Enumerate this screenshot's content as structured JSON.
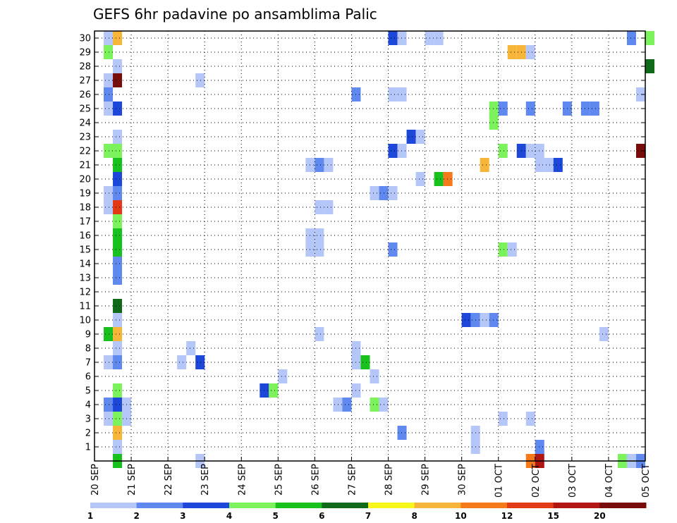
{
  "chart_data": {
    "type": "heatmap",
    "title": "GEFS 6hr padavine po ansamblima Palic",
    "xlabel": "",
    "ylabel": "",
    "x_range": [
      "2025-09-20 00:00",
      "2025-10-05 00:00"
    ],
    "y_range": [
      0,
      30
    ],
    "time_step_hours": 6,
    "grid": "dotted",
    "x_tick_labels": [
      "20 SEP",
      "21 SEP",
      "22 SEP",
      "23 SEP",
      "24 SEP",
      "25 SEP",
      "26 SEP",
      "27 SEP",
      "28 SEP",
      "29 SEP",
      "30 SEP",
      "01 OCT",
      "02 OCT",
      "03 OCT",
      "04 OCT",
      "05 OCT"
    ],
    "y_tick_labels": [
      "1",
      "2",
      "3",
      "4",
      "5",
      "6",
      "7",
      "8",
      "9",
      "10",
      "11",
      "12",
      "13",
      "14",
      "15",
      "16",
      "17",
      "18",
      "19",
      "20",
      "21",
      "22",
      "23",
      "24",
      "25",
      "26",
      "27",
      "28",
      "29",
      "30"
    ],
    "colorbar": {
      "placement": "bottom",
      "labels": [
        "1",
        "2",
        "3",
        "4",
        "5",
        "6",
        "7",
        "8",
        "10",
        "12",
        "15",
        "20"
      ],
      "colors": [
        "#b4c7f8",
        "#5f89ee",
        "#1d47d8",
        "#7cf25c",
        "#19c11e",
        "#106a1a",
        "#f7f71c",
        "#f7b63a",
        "#f6791a",
        "#e33a15",
        "#b11613",
        "#780c0b"
      ]
    },
    "cells": [
      [
        0.25,
        30,
        1
      ],
      [
        0.5,
        30,
        8
      ],
      [
        0.25,
        29,
        4
      ],
      [
        0.5,
        28,
        1
      ],
      [
        0.25,
        27,
        1
      ],
      [
        0.5,
        27,
        20
      ],
      [
        0.25,
        26,
        2
      ],
      [
        0.25,
        25,
        1
      ],
      [
        0.5,
        25,
        3
      ],
      [
        0.5,
        23,
        1
      ],
      [
        0.25,
        22,
        4
      ],
      [
        0.5,
        22,
        4
      ],
      [
        0.5,
        21,
        5
      ],
      [
        0.5,
        20,
        3
      ],
      [
        0.25,
        19,
        1
      ],
      [
        0.5,
        19,
        2
      ],
      [
        0.25,
        18,
        1
      ],
      [
        0.5,
        18,
        12
      ],
      [
        0.5,
        17,
        4
      ],
      [
        0.5,
        16,
        5
      ],
      [
        0.5,
        15,
        5
      ],
      [
        0.5,
        14,
        2
      ],
      [
        0.5,
        13,
        2
      ],
      [
        0.5,
        11,
        6
      ],
      [
        0.5,
        10,
        1
      ],
      [
        0.25,
        9,
        5
      ],
      [
        0.5,
        9,
        8
      ],
      [
        0.5,
        8,
        1
      ],
      [
        0.25,
        7,
        1
      ],
      [
        0.5,
        7,
        2
      ],
      [
        0.5,
        5,
        4
      ],
      [
        0.25,
        4,
        2
      ],
      [
        0.5,
        4,
        3
      ],
      [
        0.75,
        4,
        1
      ],
      [
        0.25,
        3,
        1
      ],
      [
        0.5,
        3,
        4
      ],
      [
        0.75,
        3,
        1
      ],
      [
        0.5,
        2,
        8
      ],
      [
        0.5,
        1,
        1
      ],
      [
        0.5,
        0,
        5
      ],
      [
        2.25,
        7,
        1
      ],
      [
        2.5,
        8,
        1
      ],
      [
        2.75,
        7,
        3
      ],
      [
        2.75,
        27,
        1
      ],
      [
        2.75,
        0,
        1
      ],
      [
        4.5,
        5,
        3
      ],
      [
        4.75,
        5,
        4
      ],
      [
        5.0,
        6,
        1
      ],
      [
        5.75,
        21,
        1
      ],
      [
        6.0,
        21,
        2
      ],
      [
        6.25,
        21,
        1
      ],
      [
        5.75,
        16,
        1
      ],
      [
        6.0,
        16,
        1
      ],
      [
        5.75,
        15,
        1
      ],
      [
        6.0,
        15,
        1
      ],
      [
        6.0,
        18,
        1
      ],
      [
        6.25,
        18,
        1
      ],
      [
        6.0,
        9,
        1
      ],
      [
        6.5,
        4,
        1
      ],
      [
        6.75,
        4,
        2
      ],
      [
        7.0,
        8,
        1
      ],
      [
        7.0,
        7,
        1
      ],
      [
        7.25,
        7,
        5
      ],
      [
        7.0,
        5,
        1
      ],
      [
        7.0,
        26,
        2
      ],
      [
        7.5,
        4,
        4
      ],
      [
        7.75,
        4,
        1
      ],
      [
        7.5,
        6,
        1
      ],
      [
        7.5,
        19,
        1
      ],
      [
        7.75,
        19,
        2
      ],
      [
        8.0,
        19,
        1
      ],
      [
        8.0,
        30,
        3
      ],
      [
        8.25,
        30,
        1
      ],
      [
        8.0,
        22,
        3
      ],
      [
        8.25,
        22,
        1
      ],
      [
        8.0,
        26,
        1
      ],
      [
        8.25,
        26,
        1
      ],
      [
        8.0,
        15,
        2
      ],
      [
        8.25,
        2,
        2
      ],
      [
        8.5,
        23,
        3
      ],
      [
        8.75,
        23,
        1
      ],
      [
        8.75,
        20,
        1
      ],
      [
        9.0,
        30,
        1
      ],
      [
        9.25,
        30,
        1
      ],
      [
        9.25,
        20,
        5
      ],
      [
        9.5,
        20,
        10
      ],
      [
        10.0,
        10,
        3
      ],
      [
        10.25,
        10,
        2
      ],
      [
        10.5,
        10,
        1
      ],
      [
        10.75,
        10,
        2
      ],
      [
        10.25,
        2,
        1
      ],
      [
        10.25,
        1,
        1
      ],
      [
        10.5,
        21,
        8
      ],
      [
        10.75,
        25,
        4
      ],
      [
        10.75,
        24,
        4
      ],
      [
        11.0,
        25,
        2
      ],
      [
        11.0,
        22,
        4
      ],
      [
        11.0,
        15,
        4
      ],
      [
        11.25,
        15,
        1
      ],
      [
        11.0,
        3,
        1
      ],
      [
        11.25,
        29,
        8
      ],
      [
        11.5,
        29,
        8
      ],
      [
        11.75,
        29,
        1
      ],
      [
        11.5,
        22,
        3
      ],
      [
        11.75,
        22,
        1
      ],
      [
        12.0,
        22,
        1
      ],
      [
        11.75,
        25,
        2
      ],
      [
        11.75,
        3,
        1
      ],
      [
        11.75,
        0,
        10
      ],
      [
        12.0,
        0,
        15
      ],
      [
        12.0,
        1,
        2
      ],
      [
        12.0,
        21,
        1
      ],
      [
        12.25,
        21,
        1
      ],
      [
        12.5,
        21,
        3
      ],
      [
        12.75,
        25,
        2
      ],
      [
        13.25,
        25,
        2
      ],
      [
        13.5,
        25,
        2
      ],
      [
        13.75,
        9,
        1
      ],
      [
        14.25,
        0,
        4
      ],
      [
        14.5,
        0,
        1
      ],
      [
        14.75,
        0,
        2
      ],
      [
        14.5,
        30,
        2
      ],
      [
        14.75,
        26,
        1
      ],
      [
        15.0,
        30,
        4
      ],
      [
        15.0,
        28,
        6
      ],
      [
        14.75,
        22,
        20
      ]
    ]
  }
}
